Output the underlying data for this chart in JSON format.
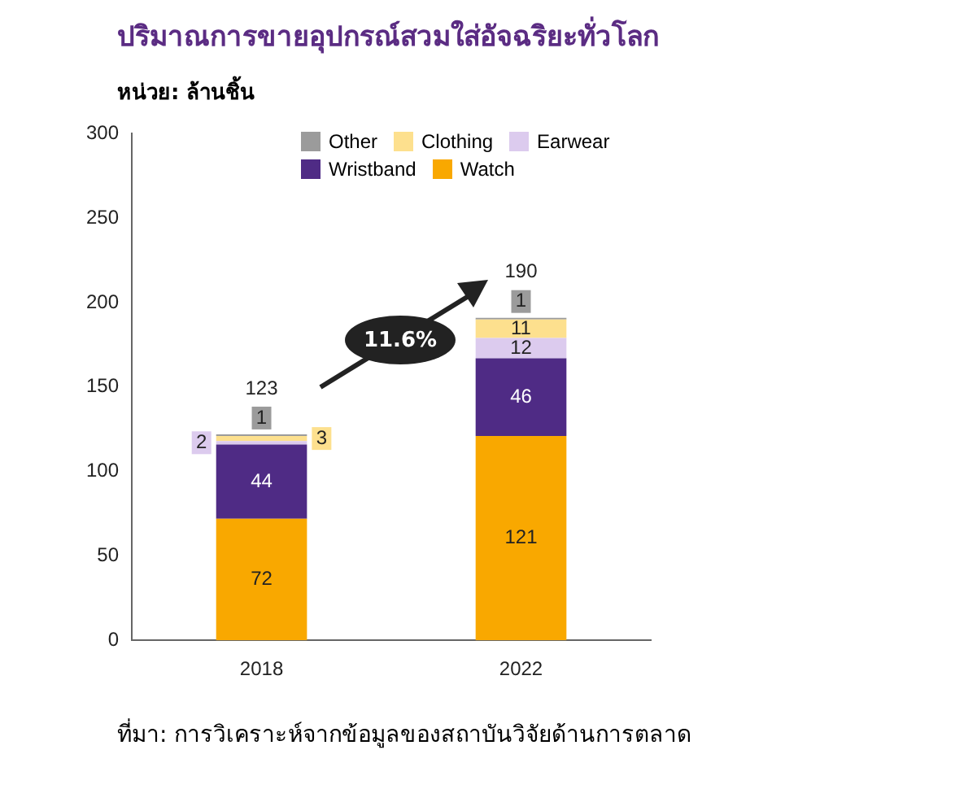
{
  "chart_data": {
    "type": "bar",
    "stacked": true,
    "title": "ปริมาณการขายอุปกรณ์สวมใส่อัจฉริยะทั่วโลก",
    "subtitle": "หน่วย: ล้านชิ้น",
    "categories": [
      "2018",
      "2022"
    ],
    "series": [
      {
        "name": "Watch",
        "color": "#f9a800",
        "values": [
          72,
          121
        ]
      },
      {
        "name": "Wristband",
        "color": "#4f2b85",
        "values": [
          44,
          46
        ]
      },
      {
        "name": "Earwear",
        "color": "#dccbee",
        "values": [
          2,
          12
        ]
      },
      {
        "name": "Clothing",
        "color": "#fde08e",
        "values": [
          3,
          11
        ]
      },
      {
        "name": "Other",
        "color": "#9b9b9b",
        "values": [
          1,
          1
        ]
      }
    ],
    "totals": [
      "123",
      "190"
    ],
    "data_labels": true,
    "ylim": [
      0,
      300
    ],
    "yticks": [
      0,
      50,
      100,
      150,
      200,
      250,
      300
    ],
    "grid": false,
    "legend": "top",
    "annotations": [
      "11.6%",
      "ที่มา: การวิเคราะห์จากข้อมูลของสถาบันวิจัยด้านการตลาด"
    ]
  }
}
